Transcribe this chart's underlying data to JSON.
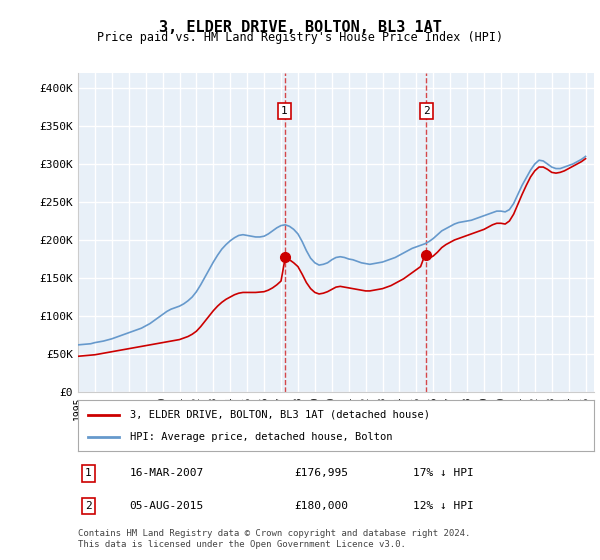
{
  "title": "3, ELDER DRIVE, BOLTON, BL3 1AT",
  "subtitle": "Price paid vs. HM Land Registry's House Price Index (HPI)",
  "ylabel_ticks": [
    "£0",
    "£50K",
    "£100K",
    "£150K",
    "£200K",
    "£250K",
    "£300K",
    "£350K",
    "£400K"
  ],
  "ylim": [
    0,
    420000
  ],
  "xlim_start": 1995.0,
  "xlim_end": 2025.5,
  "background_color": "#ffffff",
  "plot_bg_color": "#e8f0f8",
  "grid_color": "#ffffff",
  "hpi_color": "#6699cc",
  "price_color": "#cc0000",
  "sale1_x": 2007.21,
  "sale1_y": 176995,
  "sale1_label": "1",
  "sale1_date": "16-MAR-2007",
  "sale1_price": "£176,995",
  "sale1_note": "17% ↓ HPI",
  "sale2_x": 2015.59,
  "sale2_y": 180000,
  "sale2_label": "2",
  "sale2_date": "05-AUG-2015",
  "sale2_price": "£180,000",
  "sale2_note": "12% ↓ HPI",
  "legend_house": "3, ELDER DRIVE, BOLTON, BL3 1AT (detached house)",
  "legend_hpi": "HPI: Average price, detached house, Bolton",
  "footer": "Contains HM Land Registry data © Crown copyright and database right 2024.\nThis data is licensed under the Open Government Licence v3.0.",
  "hpi_data_x": [
    1995.0,
    1995.25,
    1995.5,
    1995.75,
    1996.0,
    1996.25,
    1996.5,
    1996.75,
    1997.0,
    1997.25,
    1997.5,
    1997.75,
    1998.0,
    1998.25,
    1998.5,
    1998.75,
    1999.0,
    1999.25,
    1999.5,
    1999.75,
    2000.0,
    2000.25,
    2000.5,
    2000.75,
    2001.0,
    2001.25,
    2001.5,
    2001.75,
    2002.0,
    2002.25,
    2002.5,
    2002.75,
    2003.0,
    2003.25,
    2003.5,
    2003.75,
    2004.0,
    2004.25,
    2004.5,
    2004.75,
    2005.0,
    2005.25,
    2005.5,
    2005.75,
    2006.0,
    2006.25,
    2006.5,
    2006.75,
    2007.0,
    2007.25,
    2007.5,
    2007.75,
    2008.0,
    2008.25,
    2008.5,
    2008.75,
    2009.0,
    2009.25,
    2009.5,
    2009.75,
    2010.0,
    2010.25,
    2010.5,
    2010.75,
    2011.0,
    2011.25,
    2011.5,
    2011.75,
    2012.0,
    2012.25,
    2012.5,
    2012.75,
    2013.0,
    2013.25,
    2013.5,
    2013.75,
    2014.0,
    2014.25,
    2014.5,
    2014.75,
    2015.0,
    2015.25,
    2015.5,
    2015.75,
    2016.0,
    2016.25,
    2016.5,
    2016.75,
    2017.0,
    2017.25,
    2017.5,
    2017.75,
    2018.0,
    2018.25,
    2018.5,
    2018.75,
    2019.0,
    2019.25,
    2019.5,
    2019.75,
    2020.0,
    2020.25,
    2020.5,
    2020.75,
    2021.0,
    2021.25,
    2021.5,
    2021.75,
    2022.0,
    2022.25,
    2022.5,
    2022.75,
    2023.0,
    2023.25,
    2023.5,
    2023.75,
    2024.0,
    2024.25,
    2024.5,
    2024.75,
    2025.0
  ],
  "hpi_data_y": [
    62000,
    62500,
    63000,
    63500,
    65000,
    66000,
    67000,
    68500,
    70000,
    72000,
    74000,
    76000,
    78000,
    80000,
    82000,
    84000,
    87000,
    90000,
    94000,
    98000,
    102000,
    106000,
    109000,
    111000,
    113000,
    116000,
    120000,
    125000,
    132000,
    141000,
    151000,
    161000,
    171000,
    180000,
    188000,
    194000,
    199000,
    203000,
    206000,
    207000,
    206000,
    205000,
    204000,
    204000,
    205000,
    208000,
    212000,
    216000,
    219000,
    220000,
    218000,
    214000,
    208000,
    198000,
    186000,
    176000,
    170000,
    167000,
    168000,
    170000,
    174000,
    177000,
    178000,
    177000,
    175000,
    174000,
    172000,
    170000,
    169000,
    168000,
    169000,
    170000,
    171000,
    173000,
    175000,
    177000,
    180000,
    183000,
    186000,
    189000,
    191000,
    193000,
    195000,
    198000,
    202000,
    207000,
    212000,
    215000,
    218000,
    221000,
    223000,
    224000,
    225000,
    226000,
    228000,
    230000,
    232000,
    234000,
    236000,
    238000,
    238000,
    237000,
    240000,
    248000,
    260000,
    272000,
    282000,
    292000,
    300000,
    305000,
    304000,
    300000,
    296000,
    294000,
    294000,
    296000,
    298000,
    300000,
    303000,
    306000,
    310000
  ],
  "price_data_x": [
    1995.0,
    1995.25,
    1995.5,
    1995.75,
    1996.0,
    1996.25,
    1996.5,
    1996.75,
    1997.0,
    1997.25,
    1997.5,
    1997.75,
    1998.0,
    1998.25,
    1998.5,
    1998.75,
    1999.0,
    1999.25,
    1999.5,
    1999.75,
    2000.0,
    2000.25,
    2000.5,
    2000.75,
    2001.0,
    2001.25,
    2001.5,
    2001.75,
    2002.0,
    2002.25,
    2002.5,
    2002.75,
    2003.0,
    2003.25,
    2003.5,
    2003.75,
    2004.0,
    2004.25,
    2004.5,
    2004.75,
    2005.0,
    2005.25,
    2005.5,
    2005.75,
    2006.0,
    2006.25,
    2006.5,
    2006.75,
    2007.0,
    2007.25,
    2007.5,
    2007.75,
    2008.0,
    2008.25,
    2008.5,
    2008.75,
    2009.0,
    2009.25,
    2009.5,
    2009.75,
    2010.0,
    2010.25,
    2010.5,
    2010.75,
    2011.0,
    2011.25,
    2011.5,
    2011.75,
    2012.0,
    2012.25,
    2012.5,
    2012.75,
    2013.0,
    2013.25,
    2013.5,
    2013.75,
    2014.0,
    2014.25,
    2014.5,
    2014.75,
    2015.0,
    2015.25,
    2015.5,
    2015.75,
    2016.0,
    2016.25,
    2016.5,
    2016.75,
    2017.0,
    2017.25,
    2017.5,
    2017.75,
    2018.0,
    2018.25,
    2018.5,
    2018.75,
    2019.0,
    2019.25,
    2019.5,
    2019.75,
    2020.0,
    2020.25,
    2020.5,
    2020.75,
    2021.0,
    2021.25,
    2021.5,
    2021.75,
    2022.0,
    2022.25,
    2022.5,
    2022.75,
    2023.0,
    2023.25,
    2023.5,
    2023.75,
    2024.0,
    2024.25,
    2024.5,
    2024.75,
    2025.0
  ],
  "price_data_y": [
    47000,
    47500,
    48000,
    48500,
    49000,
    50000,
    51000,
    52000,
    53000,
    54000,
    55000,
    56000,
    57000,
    58000,
    59000,
    60000,
    61000,
    62000,
    63000,
    64000,
    65000,
    66000,
    67000,
    68000,
    69000,
    71000,
    73000,
    76000,
    80000,
    86000,
    93000,
    100000,
    107000,
    113000,
    118000,
    122000,
    125000,
    128000,
    130000,
    131000,
    131000,
    131000,
    131000,
    131500,
    132000,
    134000,
    137000,
    141000,
    146000,
    176995,
    174000,
    170000,
    165000,
    155000,
    144000,
    136000,
    131000,
    129000,
    130000,
    132000,
    135000,
    138000,
    139000,
    138000,
    137000,
    136000,
    135000,
    134000,
    133000,
    133000,
    134000,
    135000,
    136000,
    138000,
    140000,
    143000,
    146000,
    149000,
    153000,
    157000,
    161000,
    165000,
    180000,
    176000,
    179000,
    184000,
    190000,
    194000,
    197000,
    200000,
    202000,
    204000,
    206000,
    208000,
    210000,
    212000,
    214000,
    217000,
    220000,
    222000,
    222000,
    221000,
    225000,
    234000,
    247000,
    260000,
    272000,
    283000,
    291000,
    296000,
    296000,
    293000,
    289000,
    288000,
    289000,
    291000,
    294000,
    297000,
    300000,
    303000,
    307000
  ]
}
